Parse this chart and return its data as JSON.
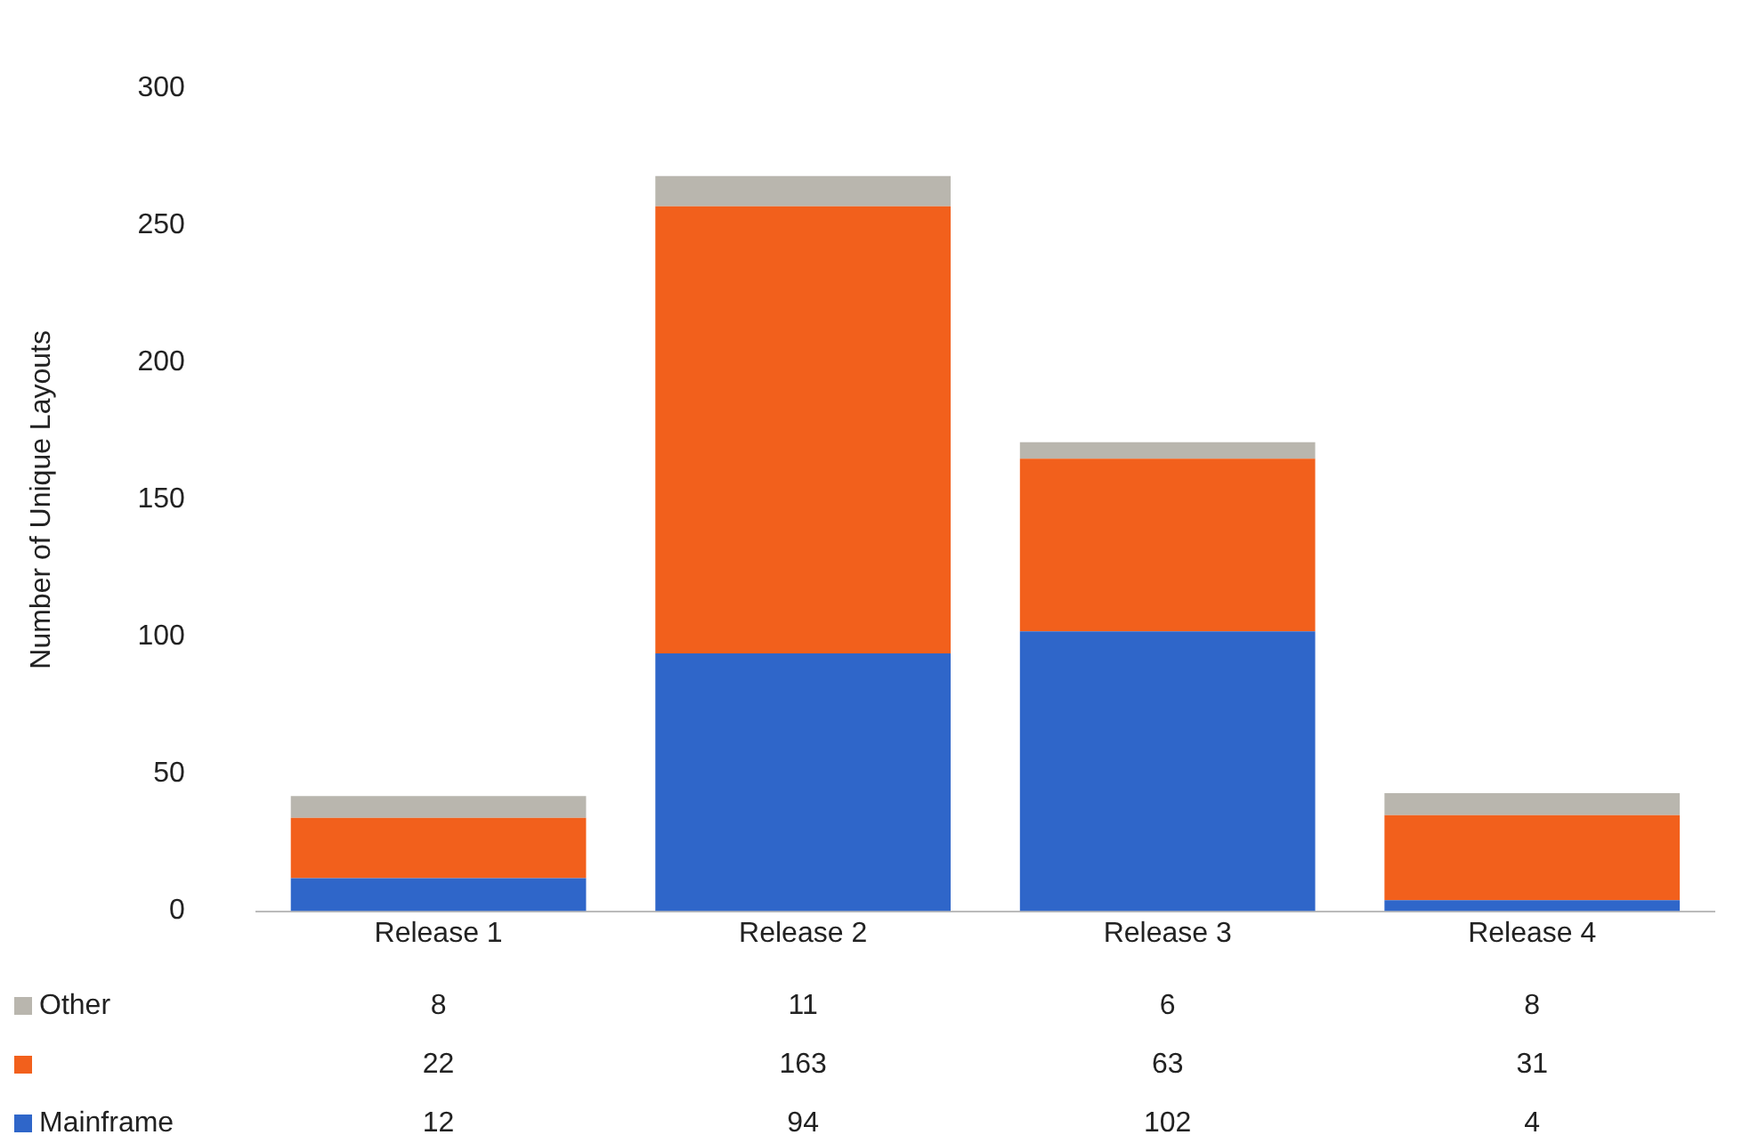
{
  "chart_data": {
    "type": "bar",
    "stacked": true,
    "ylabel": "Number of Unique Layouts",
    "categories": [
      "Release 1",
      "Release 2",
      "Release 3",
      "Release 4"
    ],
    "series": [
      {
        "name": "Mainframe",
        "color": "#2f66c9",
        "values": [
          12,
          94,
          102,
          4
        ]
      },
      {
        "color": "#f2601c",
        "values": [
          22,
          163,
          63,
          31
        ]
      },
      {
        "name": "Other",
        "color": "#b9b6ae",
        "values": [
          8,
          11,
          6,
          8
        ]
      }
    ],
    "ylim": [
      0,
      300
    ],
    "yticks": [
      0,
      50,
      100,
      150,
      200,
      250,
      300
    ],
    "grid": false,
    "data_labels": true,
    "legend": "bottom"
  }
}
